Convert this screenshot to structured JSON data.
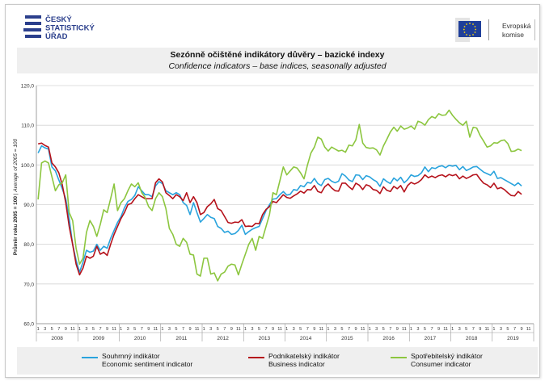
{
  "logos": {
    "csu_lines": [
      "ČESKÝ",
      "STATISTICKÝ",
      "ÚŘAD"
    ],
    "ec_lines": [
      "Evropská",
      "komise"
    ]
  },
  "title": {
    "cz": "Sezónně očištěné indikátory důvěry – bazické indexy",
    "en": "Confidence indicators – base indices, seasonally adjusted"
  },
  "colors": {
    "economic": "#29a3dd",
    "business": "#b5121b",
    "consumer": "#8cc63f",
    "grid": "#d4d4d4",
    "band": "#efefef"
  },
  "legend": [
    {
      "key": "economic",
      "line1": "Souhrnný indikátor",
      "line2": "Economic sentiment indicator"
    },
    {
      "key": "business",
      "line1": "Podnikatelský indikátor",
      "line2": "Business indicator"
    },
    {
      "key": "consumer",
      "line1": "Spotřebitelský indikátor",
      "line2": "Consumer indicator"
    }
  ],
  "chart_data": {
    "type": "line",
    "ylabel_bold": "Průměr roku 2005 = 100",
    "ylabel_italic": "Average of 2005 = 100",
    "ylim": [
      60,
      120
    ],
    "yticks": [
      "60,0",
      "70,0",
      "80,0",
      "90,0",
      "100,0",
      "110,0",
      "120,0"
    ],
    "grid": true,
    "legend_position": "bottom",
    "month_ticks": [
      "1",
      "3",
      "5",
      "7",
      "9",
      "11"
    ],
    "years": [
      "2008",
      "2009",
      "2010",
      "2011",
      "2012",
      "2013",
      "2014",
      "2015",
      "2016",
      "2017",
      "2018",
      "2019"
    ],
    "period": "monthly, January 2008 – September 2019",
    "series": [
      {
        "key": "economic",
        "values": [
          103,
          104.8,
          104.3,
          104,
          99.5,
          98.5,
          96.2,
          94,
          91.5,
          86.5,
          80,
          76,
          73,
          75.5,
          78.5,
          78,
          78.3,
          80,
          78.5,
          79.5,
          79,
          81.5,
          83.5,
          85.5,
          87,
          89.2,
          90.8,
          91.3,
          92.3,
          94.5,
          93.5,
          92.5,
          92.5,
          92,
          94.7,
          95.8,
          95.3,
          93.5,
          93,
          92.5,
          93,
          92.5,
          90.5,
          89.8,
          87.5,
          90.5,
          88,
          85.6,
          86.5,
          87.5,
          86.8,
          86.5,
          84.5,
          84,
          83,
          83.3,
          82.5,
          82.7,
          83.5,
          84.8,
          82.5,
          83.2,
          83.8,
          84.2,
          84.5,
          86.5,
          88.5,
          90,
          91.4,
          91.5,
          92.5,
          93.3,
          92.4,
          92.6,
          93.8,
          93.6,
          94.8,
          94.5,
          95.6,
          95.4,
          96.6,
          95.3,
          94.8,
          96.3,
          96.6,
          95.9,
          95.5,
          95.9,
          97.8,
          97.2,
          96.2,
          95.8,
          97.5,
          97.4,
          96.3,
          97.3,
          97,
          96.3,
          95.8,
          94.6,
          96.5,
          95.8,
          95.3,
          96.7,
          96,
          96.9,
          95.5,
          96.3,
          97.5,
          97.1,
          97.3,
          98,
          99.5,
          98.3,
          99.3,
          99.1,
          99.6,
          99.8,
          99.3,
          99.9,
          99.7,
          99.9,
          98.8,
          99.6,
          98.6,
          99,
          99.5,
          99.6,
          98.9,
          98.2,
          97.8,
          97.4,
          98.4,
          96.6,
          96.8,
          96.3,
          95.8,
          95.3,
          94.8,
          95.5,
          94.7
        ]
      },
      {
        "key": "business",
        "values": [
          105.3,
          105.5,
          104.9,
          104.5,
          100.5,
          99.5,
          98,
          95,
          90.5,
          84.5,
          80,
          75,
          72.3,
          74,
          77,
          76.5,
          77,
          79.5,
          77.5,
          78,
          77.2,
          80,
          82.5,
          84.5,
          86.5,
          88,
          90,
          90.3,
          91.5,
          92.5,
          92,
          91.5,
          91.5,
          91.5,
          95.5,
          96.5,
          95.7,
          93,
          92.3,
          91.5,
          92.5,
          92,
          91,
          93,
          90.5,
          92,
          90.5,
          87.5,
          88,
          89.5,
          90.2,
          91.3,
          89,
          88.5,
          87,
          85.5,
          85.3,
          85.6,
          85.5,
          86.2,
          84.5,
          84.6,
          84.5,
          85.3,
          85.2,
          87.5,
          88.8,
          89.5,
          90.8,
          90.5,
          91.5,
          92.5,
          91.8,
          91.6,
          92.2,
          92.7,
          93.4,
          92.9,
          93.8,
          93.7,
          94.8,
          93.3,
          93,
          94.5,
          95.2,
          94.2,
          93.5,
          93.4,
          95.4,
          95.4,
          94.5,
          93.8,
          95.4,
          94.9,
          93.8,
          95,
          94.7,
          93.8,
          93.6,
          92.8,
          94.5,
          93.6,
          93.3,
          94.6,
          94,
          94.8,
          93.2,
          94.8,
          95.6,
          95.2,
          95.6,
          96.3,
          97.5,
          96.8,
          97.2,
          96.8,
          97.3,
          97.5,
          97,
          97.6,
          97.3,
          97.6,
          96.5,
          97.2,
          96.6,
          97,
          97.5,
          97.6,
          96.4,
          95.4,
          95,
          94.3,
          95.4,
          94,
          94.3,
          93.8,
          93,
          92.3,
          92.2,
          93.3,
          92.6
        ]
      },
      {
        "key": "consumer",
        "values": [
          91.3,
          100.5,
          101,
          100.5,
          97,
          93.5,
          95,
          95.5,
          97.5,
          88,
          86,
          79,
          75,
          76.5,
          83,
          86,
          84.5,
          82,
          85,
          88.7,
          88,
          91.5,
          95.2,
          88.5,
          90.5,
          91.5,
          93.5,
          95.2,
          94.5,
          95.5,
          93,
          91.8,
          89.5,
          88.5,
          91.5,
          93,
          92,
          89,
          84,
          82.5,
          80,
          79.5,
          81.5,
          80.5,
          77.5,
          77.3,
          72.5,
          72,
          76.5,
          76.5,
          72.5,
          72.8,
          70.8,
          72.5,
          73,
          74.5,
          75,
          74.8,
          72.3,
          75,
          77.5,
          80,
          81.5,
          78.5,
          82,
          81.5,
          84.5,
          87.5,
          93,
          92.5,
          96,
          99.5,
          97.5,
          98.5,
          99.5,
          99.2,
          98,
          96.5,
          100,
          103,
          104.5,
          107,
          106.5,
          104.5,
          103.5,
          104.5,
          104,
          103.5,
          103.7,
          103.2,
          105,
          104.8,
          106.3,
          110.2,
          105.5,
          104.4,
          104.2,
          104.3,
          103.8,
          102.5,
          104.8,
          106.5,
          108.3,
          109.5,
          108.5,
          109.8,
          109,
          109.3,
          109.8,
          109,
          111,
          110.7,
          110,
          111.4,
          112.2,
          111.8,
          112.9,
          112.5,
          112.6,
          113.8,
          112.5,
          111.5,
          110.6,
          110,
          111,
          107,
          109.5,
          109.3,
          107.4,
          106,
          104.5,
          104.8,
          105.6,
          105.5,
          106.1,
          106.3,
          105.4,
          103.4,
          103.5,
          104,
          103.6
        ]
      }
    ]
  }
}
